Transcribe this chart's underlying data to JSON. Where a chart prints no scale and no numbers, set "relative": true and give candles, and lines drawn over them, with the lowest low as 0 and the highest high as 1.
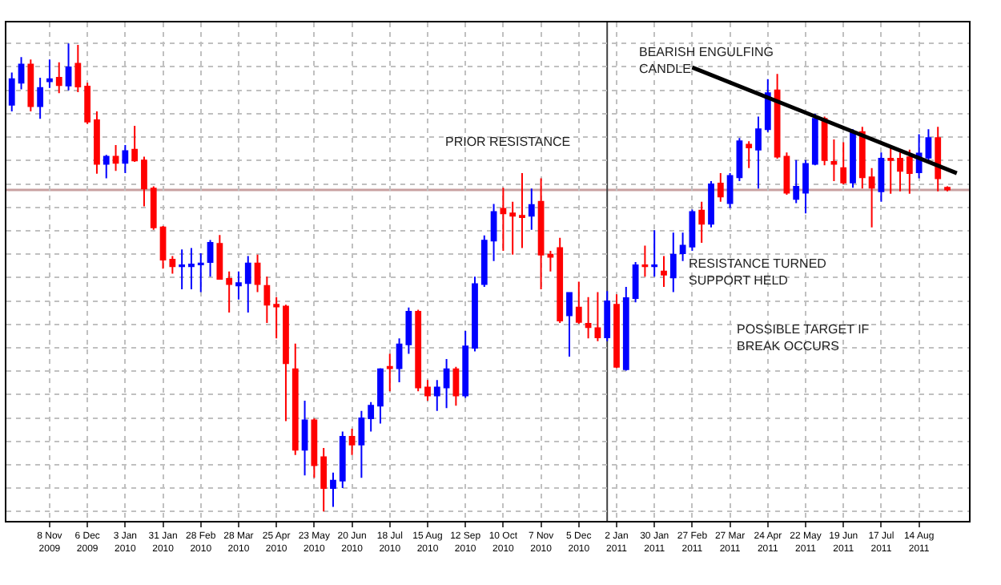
{
  "chart_data": {
    "type": "candlestick",
    "relative": true,
    "grid": true,
    "x": [
      "2009-10-11",
      "2009-10-18",
      "2009-10-25",
      "2009-11-01",
      "2009-11-08",
      "2009-11-15",
      "2009-11-22",
      "2009-11-29",
      "2009-12-06",
      "2009-12-13",
      "2009-12-20",
      "2009-12-27",
      "2010-01-03",
      "2010-01-10",
      "2010-01-17",
      "2010-01-24",
      "2010-01-31",
      "2010-02-07",
      "2010-02-14",
      "2010-02-21",
      "2010-02-28",
      "2010-03-07",
      "2010-03-14",
      "2010-03-21",
      "2010-03-28",
      "2010-04-04",
      "2010-04-11",
      "2010-04-18",
      "2010-04-25",
      "2010-05-02",
      "2010-05-09",
      "2010-05-16",
      "2010-05-23",
      "2010-05-30",
      "2010-06-06",
      "2010-06-13",
      "2010-06-20",
      "2010-06-27",
      "2010-07-04",
      "2010-07-11",
      "2010-07-18",
      "2010-07-25",
      "2010-08-01",
      "2010-08-08",
      "2010-08-15",
      "2010-08-22",
      "2010-08-29",
      "2010-09-05",
      "2010-09-12",
      "2010-09-19",
      "2010-09-26",
      "2010-10-03",
      "2010-10-10",
      "2010-10-17",
      "2010-10-24",
      "2010-10-31",
      "2010-11-07",
      "2010-11-14",
      "2010-11-21",
      "2010-11-28",
      "2010-12-05",
      "2010-12-12",
      "2010-12-19",
      "2010-12-26",
      "2011-01-02",
      "2011-01-09",
      "2011-01-16",
      "2011-01-23",
      "2011-01-30",
      "2011-02-06",
      "2011-02-13",
      "2011-02-20",
      "2011-02-27",
      "2011-03-06",
      "2011-03-13",
      "2011-03-20",
      "2011-03-27",
      "2011-04-03",
      "2011-04-10",
      "2011-04-17",
      "2011-04-24",
      "2011-05-01",
      "2011-05-08",
      "2011-05-15",
      "2011-05-22",
      "2011-05-29",
      "2011-06-05",
      "2011-06-12",
      "2011-06-19",
      "2011-06-26",
      "2011-07-03",
      "2011-07-10",
      "2011-07-17",
      "2011-07-24",
      "2011-07-31",
      "2011-08-07",
      "2011-08-14",
      "2011-08-21",
      "2011-08-28",
      "2011-09-04"
    ],
    "ohlc": [
      [
        0.869,
        0.938,
        0.855,
        0.924
      ],
      [
        0.916,
        0.971,
        0.902,
        0.955
      ],
      [
        0.955,
        0.966,
        0.855,
        0.866
      ],
      [
        0.866,
        0.927,
        0.839,
        0.905
      ],
      [
        0.919,
        0.966,
        0.905,
        0.924
      ],
      [
        0.927,
        0.96,
        0.894,
        0.911
      ],
      [
        0.91,
        1.0,
        0.9,
        0.949
      ],
      [
        0.957,
        0.997,
        0.896,
        0.908
      ],
      [
        0.908,
        0.916,
        0.828,
        0.833
      ],
      [
        0.836,
        0.855,
        0.722,
        0.743
      ],
      [
        0.743,
        0.762,
        0.712,
        0.758
      ],
      [
        0.758,
        0.783,
        0.728,
        0.745
      ],
      [
        0.745,
        0.783,
        0.723,
        0.77
      ],
      [
        0.773,
        0.824,
        0.747,
        0.75
      ],
      [
        0.75,
        0.758,
        0.652,
        0.69
      ],
      [
        0.69,
        0.695,
        0.602,
        0.607
      ],
      [
        0.607,
        0.61,
        0.519,
        0.538
      ],
      [
        0.538,
        0.546,
        0.508,
        0.524
      ],
      [
        0.524,
        0.56,
        0.475,
        0.526
      ],
      [
        0.524,
        0.563,
        0.475,
        0.528
      ],
      [
        0.528,
        0.552,
        0.469,
        0.53
      ],
      [
        0.533,
        0.58,
        0.502,
        0.574
      ],
      [
        0.572,
        0.591,
        0.497,
        0.497
      ],
      [
        0.497,
        0.513,
        0.425,
        0.486
      ],
      [
        0.483,
        0.513,
        0.453,
        0.488
      ],
      [
        0.488,
        0.546,
        0.425,
        0.53
      ],
      [
        0.53,
        0.549,
        0.469,
        0.486
      ],
      [
        0.482,
        0.502,
        0.403,
        0.442
      ],
      [
        0.442,
        0.458,
        0.37,
        0.438
      ],
      [
        0.438,
        0.442,
        0.193,
        0.317
      ],
      [
        0.304,
        0.359,
        0.121,
        0.132
      ],
      [
        0.132,
        0.237,
        0.077,
        0.195
      ],
      [
        0.195,
        0.199,
        0.072,
        0.099
      ],
      [
        0.116,
        0.136,
        0.0,
        0.05
      ],
      [
        0.05,
        0.083,
        0.01,
        0.066
      ],
      [
        0.066,
        0.171,
        0.05,
        0.16
      ],
      [
        0.16,
        0.177,
        0.121,
        0.143
      ],
      [
        0.143,
        0.215,
        0.072,
        0.199
      ],
      [
        0.199,
        0.234,
        0.171,
        0.226
      ],
      [
        0.226,
        0.306,
        0.188,
        0.304
      ],
      [
        0.309,
        0.337,
        0.257,
        0.306
      ],
      [
        0.306,
        0.37,
        0.276,
        0.357
      ],
      [
        0.357,
        0.436,
        0.337,
        0.427
      ],
      [
        0.427,
        0.431,
        0.257,
        0.265
      ],
      [
        0.265,
        0.281,
        0.237,
        0.248
      ],
      [
        0.248,
        0.281,
        0.215,
        0.265
      ],
      [
        0.265,
        0.326,
        0.221,
        0.304
      ],
      [
        0.304,
        0.309,
        0.226,
        0.248
      ],
      [
        0.248,
        0.386,
        0.243,
        0.353
      ],
      [
        0.35,
        0.502,
        0.342,
        0.486
      ],
      [
        0.486,
        0.59,
        0.48,
        0.579
      ],
      [
        0.579,
        0.657,
        0.535,
        0.64
      ],
      [
        0.647,
        0.692,
        0.557,
        0.637
      ],
      [
        0.637,
        0.662,
        0.549,
        0.632
      ],
      [
        0.632,
        0.723,
        0.563,
        0.629
      ],
      [
        0.632,
        0.69,
        0.602,
        0.655
      ],
      [
        0.662,
        0.712,
        0.475,
        0.549
      ],
      [
        0.549,
        0.557,
        0.513,
        0.544
      ],
      [
        0.563,
        0.585,
        0.403,
        0.408
      ],
      [
        0.419,
        0.469,
        0.331,
        0.467
      ],
      [
        0.436,
        0.491,
        0.401,
        0.405
      ],
      [
        0.401,
        0.458,
        0.37,
        0.394
      ],
      [
        0.392,
        0.469,
        0.364,
        0.372
      ],
      [
        0.372,
        0.471,
        0.364,
        0.449
      ],
      [
        0.442,
        0.464,
        0.306,
        0.309
      ],
      [
        0.304,
        0.48,
        0.301,
        0.456
      ],
      [
        0.456,
        0.533,
        0.447,
        0.526
      ],
      [
        0.526,
        0.568,
        0.502,
        0.524
      ],
      [
        0.524,
        0.601,
        0.502,
        0.526
      ],
      [
        0.513,
        0.546,
        0.48,
        0.506
      ],
      [
        0.5,
        0.596,
        0.469,
        0.549
      ],
      [
        0.552,
        0.596,
        0.535,
        0.568
      ],
      [
        0.566,
        0.645,
        0.557,
        0.64
      ],
      [
        0.643,
        0.662,
        0.574,
        0.615
      ],
      [
        0.615,
        0.706,
        0.607,
        0.699
      ],
      [
        0.701,
        0.723,
        0.662,
        0.673
      ],
      [
        0.659,
        0.723,
        0.648,
        0.717
      ],
      [
        0.714,
        0.798,
        0.706,
        0.791
      ],
      [
        0.784,
        0.791,
        0.734,
        0.778
      ],
      [
        0.773,
        0.844,
        0.69,
        0.817
      ],
      [
        0.817,
        0.924,
        0.811,
        0.894
      ],
      [
        0.9,
        0.935,
        0.754,
        0.758
      ],
      [
        0.758,
        0.767,
        0.677,
        0.681
      ],
      [
        0.668,
        0.751,
        0.659,
        0.694
      ],
      [
        0.681,
        0.751,
        0.637,
        0.743
      ],
      [
        0.743,
        0.85,
        0.74,
        0.839
      ],
      [
        0.839,
        0.844,
        0.74,
        0.751
      ],
      [
        0.747,
        0.795,
        0.706,
        0.743
      ],
      [
        0.734,
        0.789,
        0.699,
        0.703
      ],
      [
        0.703,
        0.817,
        0.692,
        0.809
      ],
      [
        0.811,
        0.822,
        0.69,
        0.714
      ],
      [
        0.714,
        0.734,
        0.607,
        0.692
      ],
      [
        0.684,
        0.767,
        0.662,
        0.754
      ],
      [
        0.754,
        0.78,
        0.679,
        0.751
      ],
      [
        0.754,
        0.767,
        0.684,
        0.728
      ],
      [
        0.757,
        0.773,
        0.679,
        0.723
      ],
      [
        0.725,
        0.806,
        0.712,
        0.765
      ],
      [
        0.756,
        0.817,
        0.747,
        0.798
      ],
      [
        0.798,
        0.822,
        0.684,
        0.712
      ],
      [
        0.692,
        0.695,
        0.684,
        0.688
      ]
    ],
    "colors": [
      "#0000ff",
      "#0000ff",
      "#ff0000",
      "#0000ff",
      "#0000ff",
      "#ff0000",
      "#0000ff",
      "#ff0000",
      "#ff0000",
      "#ff0000",
      "#0000ff",
      "#ff0000",
      "#0000ff",
      "#ff0000",
      "#ff0000",
      "#ff0000",
      "#ff0000",
      "#ff0000",
      "#0000ff",
      "#0000ff",
      "#0000ff",
      "#0000ff",
      "#ff0000",
      "#ff0000",
      "#0000ff",
      "#0000ff",
      "#ff0000",
      "#ff0000",
      "#ff0000",
      "#ff0000",
      "#ff0000",
      "#0000ff",
      "#ff0000",
      "#ff0000",
      "#0000ff",
      "#0000ff",
      "#ff0000",
      "#0000ff",
      "#0000ff",
      "#0000ff",
      "#ff0000",
      "#0000ff",
      "#0000ff",
      "#ff0000",
      "#ff0000",
      "#0000ff",
      "#0000ff",
      "#ff0000",
      "#0000ff",
      "#0000ff",
      "#0000ff",
      "#0000ff",
      "#ff0000",
      "#ff0000",
      "#ff0000",
      "#0000ff",
      "#ff0000",
      "#ff0000",
      "#ff0000",
      "#0000ff",
      "#ff0000",
      "#ff0000",
      "#ff0000",
      "#0000ff",
      "#ff0000",
      "#0000ff",
      "#0000ff",
      "#ff0000",
      "#0000ff",
      "#ff0000",
      "#0000ff",
      "#0000ff",
      "#0000ff",
      "#ff0000",
      "#0000ff",
      "#ff0000",
      "#0000ff",
      "#0000ff",
      "#ff0000",
      "#0000ff",
      "#0000ff",
      "#ff0000",
      "#ff0000",
      "#0000ff",
      "#0000ff",
      "#0000ff",
      "#ff0000",
      "#ff0000",
      "#ff0000",
      "#0000ff",
      "#ff0000",
      "#ff0000",
      "#0000ff",
      "#ff0000",
      "#ff0000",
      "#ff0000",
      "#0000ff",
      "#0000ff",
      "#ff0000",
      "#ff0000"
    ],
    "series": [
      {
        "type": "line",
        "color": "#000000",
        "x": [
          "2011-02-27",
          "2011-09-11"
        ],
        "values": [
          0.949,
          0.723
        ]
      }
    ],
    "xlim": [
      "2009-10-07",
      "2011-09-20"
    ],
    "xticks": [
      {
        "value": "2009-11-08",
        "label": "8 Nov 2009"
      },
      {
        "value": "2009-12-06",
        "label": "6 Dec 2009"
      },
      {
        "value": "2010-01-03",
        "label": "3 Jan 2010"
      },
      {
        "value": "2010-01-31",
        "label": "31 Jan 2010"
      },
      {
        "value": "2010-02-28",
        "label": "28 Feb 2010"
      },
      {
        "value": "2010-03-28",
        "label": "28 Mar 2010"
      },
      {
        "value": "2010-04-25",
        "label": "25 Apr 2010"
      },
      {
        "value": "2010-05-23",
        "label": "23 May 2010"
      },
      {
        "value": "2010-06-20",
        "label": "20 Jun 2010"
      },
      {
        "value": "2010-07-18",
        "label": "18 Jul 2010"
      },
      {
        "value": "2010-08-15",
        "label": "15 Aug 2010"
      },
      {
        "value": "2010-09-12",
        "label": "12 Sep 2010"
      },
      {
        "value": "2010-10-10",
        "label": "10 Oct 2010"
      },
      {
        "value": "2010-11-07",
        "label": "7 Nov 2010"
      },
      {
        "value": "2010-12-05",
        "label": "5 Dec 2010"
      },
      {
        "value": "2011-01-02",
        "label": "2 Jan 2011"
      },
      {
        "value": "2011-01-30",
        "label": "30 Jan 2011"
      },
      {
        "value": "2011-02-27",
        "label": "27 Feb 2011"
      },
      {
        "value": "2011-03-27",
        "label": "27 Mar 2011"
      },
      {
        "value": "2011-04-24",
        "label": "24 Apr 2011"
      },
      {
        "value": "2011-05-22",
        "label": "22 May 2011"
      },
      {
        "value": "2011-06-19",
        "label": "19 Jun 2011"
      },
      {
        "value": "2011-07-17",
        "label": "17 Jul 2011"
      },
      {
        "value": "2011-08-14",
        "label": "14 Aug 2011"
      }
    ],
    "ref_lines": [
      {
        "axis": "y",
        "value": 0.687,
        "color": "#c8a0a0"
      },
      {
        "axis": "x",
        "value": "2010-12-26",
        "color": "#404040"
      }
    ],
    "annotations": [
      "PRIOR RESISTANCE",
      "BEARISH ENGULFING CANDLE",
      "RESISTANCE TURNED SUPPORT HELD",
      "POSSIBLE TARGET IF BREAK OCCURS"
    ]
  }
}
